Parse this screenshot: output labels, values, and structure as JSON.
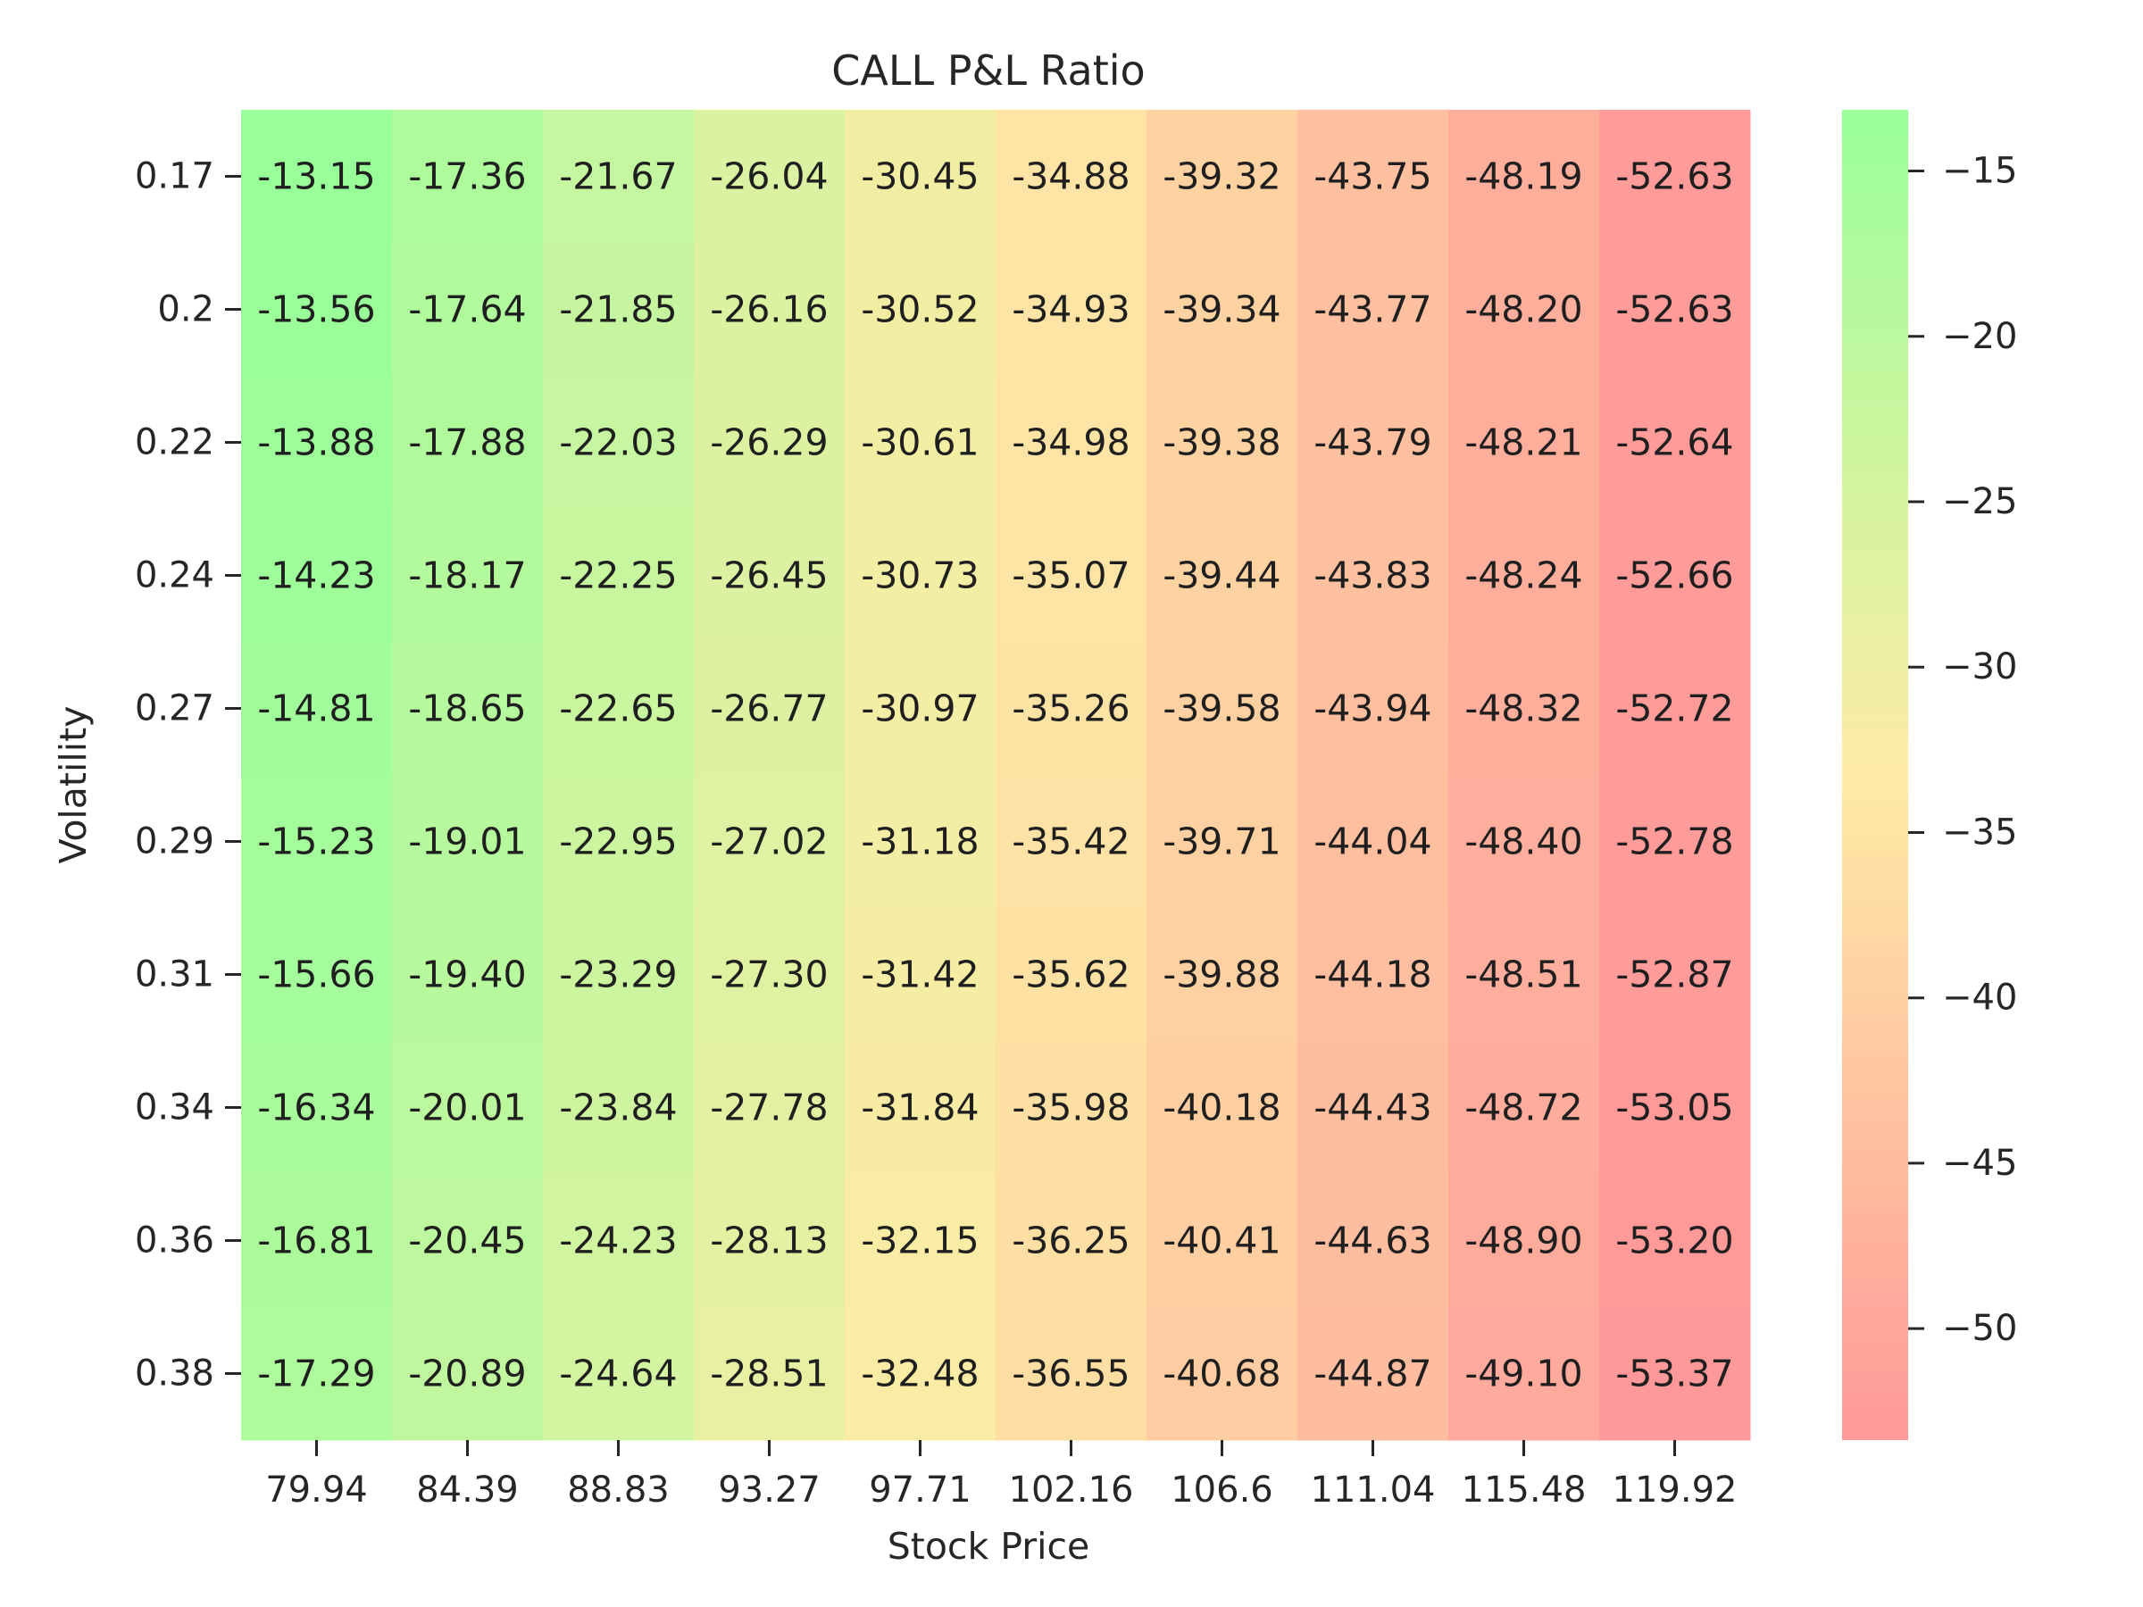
{
  "chart_data": {
    "type": "heatmap",
    "title": "CALL P&L Ratio",
    "xlabel": "Stock Price",
    "ylabel": "Volatility",
    "x": [
      "79.94",
      "84.39",
      "88.83",
      "93.27",
      "97.71",
      "102.16",
      "106.6",
      "111.04",
      "115.48",
      "119.92"
    ],
    "y": [
      "0.17",
      "0.2",
      "0.22",
      "0.24",
      "0.27",
      "0.29",
      "0.31",
      "0.34",
      "0.36",
      "0.38"
    ],
    "values": [
      [
        -13.15,
        -17.36,
        -21.67,
        -26.04,
        -30.45,
        -34.88,
        -39.32,
        -43.75,
        -48.19,
        -52.63
      ],
      [
        -13.56,
        -17.64,
        -21.85,
        -26.16,
        -30.52,
        -34.93,
        -39.34,
        -43.77,
        -48.2,
        -52.63
      ],
      [
        -13.88,
        -17.88,
        -22.03,
        -26.29,
        -30.61,
        -34.98,
        -39.38,
        -43.79,
        -48.21,
        -52.64
      ],
      [
        -14.23,
        -18.17,
        -22.25,
        -26.45,
        -30.73,
        -35.07,
        -39.44,
        -43.83,
        -48.24,
        -52.66
      ],
      [
        -14.81,
        -18.65,
        -22.65,
        -26.77,
        -30.97,
        -35.26,
        -39.58,
        -43.94,
        -48.32,
        -52.72
      ],
      [
        -15.23,
        -19.01,
        -22.95,
        -27.02,
        -31.18,
        -35.42,
        -39.71,
        -44.04,
        -48.4,
        -52.78
      ],
      [
        -15.66,
        -19.4,
        -23.29,
        -27.3,
        -31.42,
        -35.62,
        -39.88,
        -44.18,
        -48.51,
        -52.87
      ],
      [
        -16.34,
        -20.01,
        -23.84,
        -27.78,
        -31.84,
        -35.98,
        -40.18,
        -44.43,
        -48.72,
        -53.05
      ],
      [
        -16.81,
        -20.45,
        -24.23,
        -28.13,
        -32.15,
        -36.25,
        -40.41,
        -44.63,
        -48.9,
        -53.2
      ],
      [
        -17.29,
        -20.89,
        -24.64,
        -28.51,
        -32.48,
        -36.55,
        -40.68,
        -44.87,
        -49.1,
        -53.37
      ]
    ],
    "value_labels": [
      [
        "-13.15",
        "-17.36",
        "-21.67",
        "-26.04",
        "-30.45",
        "-34.88",
        "-39.32",
        "-43.75",
        "-48.19",
        "-52.63"
      ],
      [
        "-13.56",
        "-17.64",
        "-21.85",
        "-26.16",
        "-30.52",
        "-34.93",
        "-39.34",
        "-43.77",
        "-48.20",
        "-52.63"
      ],
      [
        "-13.88",
        "-17.88",
        "-22.03",
        "-26.29",
        "-30.61",
        "-34.98",
        "-39.38",
        "-43.79",
        "-48.21",
        "-52.64"
      ],
      [
        "-14.23",
        "-18.17",
        "-22.25",
        "-26.45",
        "-30.73",
        "-35.07",
        "-39.44",
        "-43.83",
        "-48.24",
        "-52.66"
      ],
      [
        "-14.81",
        "-18.65",
        "-22.65",
        "-26.77",
        "-30.97",
        "-35.26",
        "-39.58",
        "-43.94",
        "-48.32",
        "-52.72"
      ],
      [
        "-15.23",
        "-19.01",
        "-22.95",
        "-27.02",
        "-31.18",
        "-35.42",
        "-39.71",
        "-44.04",
        "-48.40",
        "-52.78"
      ],
      [
        "-15.66",
        "-19.40",
        "-23.29",
        "-27.30",
        "-31.42",
        "-35.62",
        "-39.88",
        "-44.18",
        "-48.51",
        "-52.87"
      ],
      [
        "-16.34",
        "-20.01",
        "-23.84",
        "-27.78",
        "-31.84",
        "-35.98",
        "-40.18",
        "-44.43",
        "-48.72",
        "-53.05"
      ],
      [
        "-16.81",
        "-20.45",
        "-24.23",
        "-28.13",
        "-32.15",
        "-36.25",
        "-40.41",
        "-44.63",
        "-48.90",
        "-53.20"
      ],
      [
        "-17.29",
        "-20.89",
        "-24.64",
        "-28.51",
        "-32.48",
        "-36.55",
        "-40.68",
        "-44.87",
        "-49.10",
        "-53.37"
      ]
    ],
    "colorbar": {
      "range": [
        -53.37,
        -13.15
      ],
      "ticks": [
        -15,
        -20,
        -25,
        -30,
        -35,
        -40,
        -45,
        -50
      ],
      "tick_labels": [
        "−15",
        "−20",
        "−25",
        "−30",
        "−35",
        "−40",
        "−45",
        "−50"
      ],
      "colors": [
        "#ff9999",
        "#ffeba6",
        "#99ff99"
      ]
    },
    "grid": false
  }
}
